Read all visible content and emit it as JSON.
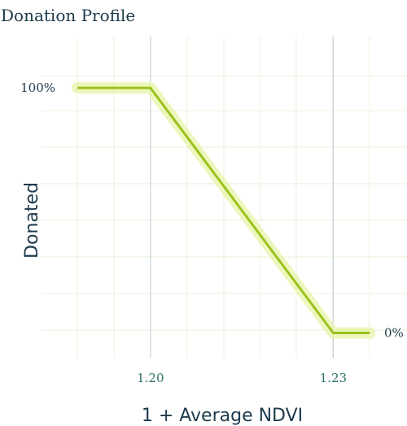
{
  "chart_data": {
    "type": "line",
    "title": "Donation Profile",
    "xlabel": "1 + Average NDVI",
    "ylabel": "Donated",
    "x_ticks": [
      {
        "value": 1.2,
        "label": "1.20"
      },
      {
        "value": 1.23,
        "label": "1.23"
      }
    ],
    "y_ticks": [
      {
        "value": 100,
        "label": "100%"
      },
      {
        "value": 0,
        "label": "0%"
      }
    ],
    "xlim": [
      1.188,
      1.2365
    ],
    "ylim": [
      -5.8,
      105
    ],
    "grid": true,
    "series": [
      {
        "points": [
          {
            "x": 1.188,
            "y": 100
          },
          {
            "x": 1.2,
            "y": 100
          },
          {
            "x": 1.23,
            "y": 0
          },
          {
            "x": 1.236,
            "y": 0
          }
        ]
      }
    ],
    "colors": {
      "line": "#9bc21f",
      "glow": "#e7f3a6",
      "grid": "#eef2df",
      "reference": "#c5d6d4",
      "text": "#1d3a4c",
      "x_tick_text": "#2e6f6a"
    }
  }
}
